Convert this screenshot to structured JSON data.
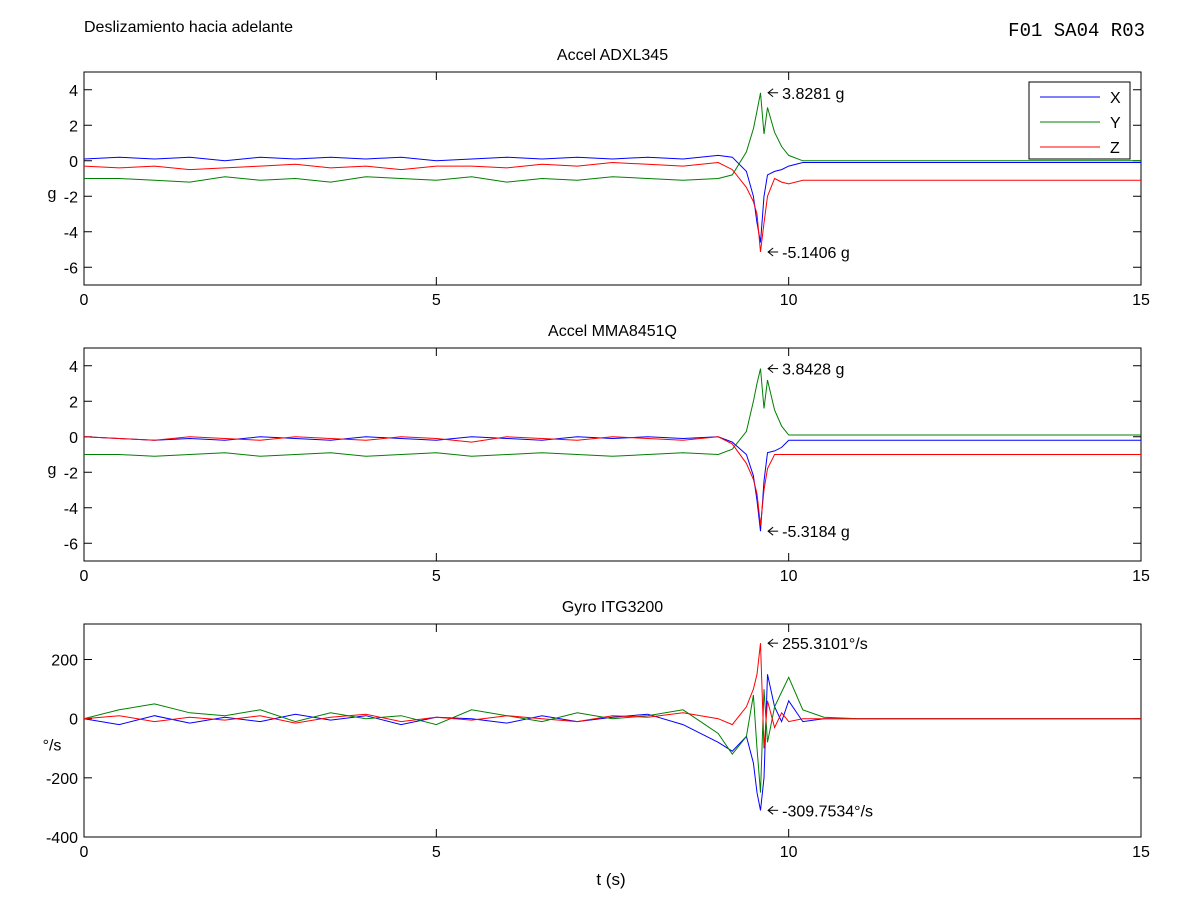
{
  "figure": {
    "title": "Deslizamiento hacia adelante",
    "code": "F01  SA04  R03",
    "xlabel": "t (s)"
  },
  "colors": {
    "X": "#0000ff",
    "Y": "#008000",
    "Z": "#ff0000",
    "axis": "#000000"
  },
  "chart_data": [
    {
      "type": "line",
      "title": "Accel ADXL345",
      "xlabel": "",
      "ylabel": "g",
      "xlim": [
        0,
        15
      ],
      "ylim": [
        -7,
        5
      ],
      "xticks": [
        0,
        5,
        10,
        15
      ],
      "yticks": [
        -6,
        -4,
        -2,
        0,
        2,
        4
      ],
      "grid": false,
      "legend": {
        "placement": "top-right",
        "entries": [
          "X",
          "Y",
          "Z"
        ]
      },
      "series": [
        {
          "name": "X",
          "x": [
            0,
            0.5,
            1,
            1.5,
            2,
            2.5,
            3,
            3.5,
            4,
            4.5,
            5,
            5.5,
            6,
            6.5,
            7,
            7.5,
            8,
            8.5,
            9,
            9.2,
            9.4,
            9.5,
            9.55,
            9.6,
            9.65,
            9.7,
            9.8,
            9.9,
            10,
            10.2,
            10.5,
            11,
            12,
            13,
            14,
            15
          ],
          "y": [
            0.1,
            0.2,
            0.1,
            0.2,
            0.0,
            0.2,
            0.1,
            0.2,
            0.1,
            0.2,
            0.0,
            0.1,
            0.2,
            0.1,
            0.2,
            0.1,
            0.2,
            0.1,
            0.3,
            0.2,
            -0.6,
            -2.0,
            -3.5,
            -4.6,
            -2.0,
            -0.8,
            -0.6,
            -0.5,
            -0.3,
            -0.1,
            -0.1,
            -0.1,
            -0.1,
            -0.1,
            -0.1,
            -0.1
          ]
        },
        {
          "name": "Y",
          "x": [
            0,
            0.5,
            1,
            1.5,
            2,
            2.5,
            3,
            3.5,
            4,
            4.5,
            5,
            5.5,
            6,
            6.5,
            7,
            7.5,
            8,
            8.5,
            9,
            9.2,
            9.4,
            9.5,
            9.55,
            9.6,
            9.65,
            9.7,
            9.8,
            9.9,
            10,
            10.2,
            10.5,
            11,
            12,
            13,
            14,
            15
          ],
          "y": [
            -1.0,
            -1.0,
            -1.1,
            -1.2,
            -0.9,
            -1.1,
            -1.0,
            -1.2,
            -0.9,
            -1.0,
            -1.1,
            -0.9,
            -1.2,
            -1.0,
            -1.1,
            -0.9,
            -1.0,
            -1.1,
            -1.0,
            -0.8,
            0.5,
            1.8,
            2.8,
            3.83,
            1.5,
            3.0,
            1.6,
            0.8,
            0.3,
            0.0,
            0.0,
            0.0,
            0.0,
            0.0,
            0.0,
            0.0
          ]
        },
        {
          "name": "Z",
          "x": [
            0,
            0.5,
            1,
            1.5,
            2,
            2.5,
            3,
            3.5,
            4,
            4.5,
            5,
            5.5,
            6,
            6.5,
            7,
            7.5,
            8,
            8.5,
            9,
            9.2,
            9.4,
            9.5,
            9.55,
            9.6,
            9.65,
            9.7,
            9.8,
            9.9,
            10,
            10.2,
            10.5,
            11,
            12,
            13,
            14,
            15
          ],
          "y": [
            -0.3,
            -0.4,
            -0.3,
            -0.5,
            -0.4,
            -0.3,
            -0.2,
            -0.4,
            -0.3,
            -0.5,
            -0.3,
            -0.3,
            -0.4,
            -0.2,
            -0.3,
            -0.1,
            -0.2,
            -0.3,
            -0.1,
            -0.5,
            -1.5,
            -2.3,
            -3.0,
            -5.14,
            -3.5,
            -2.0,
            -1.0,
            -1.2,
            -1.3,
            -1.1,
            -1.1,
            -1.1,
            -1.1,
            -1.1,
            -1.1,
            -1.1
          ]
        }
      ],
      "annotations": [
        {
          "text": "3.8281 g",
          "x": 9.68,
          "y": 3.83
        },
        {
          "text": "-5.1406 g",
          "x": 9.68,
          "y": -5.14
        }
      ]
    },
    {
      "type": "line",
      "title": "Accel MMA8451Q",
      "xlabel": "",
      "ylabel": "g",
      "xlim": [
        0,
        15
      ],
      "ylim": [
        -7,
        5
      ],
      "xticks": [
        0,
        5,
        10,
        15
      ],
      "yticks": [
        -6,
        -4,
        -2,
        0,
        2,
        4
      ],
      "grid": false,
      "series": [
        {
          "name": "X",
          "x": [
            0,
            0.5,
            1,
            1.5,
            2,
            2.5,
            3,
            3.5,
            4,
            4.5,
            5,
            5.5,
            6,
            6.5,
            7,
            7.5,
            8,
            8.5,
            9,
            9.2,
            9.4,
            9.5,
            9.55,
            9.6,
            9.65,
            9.7,
            9.8,
            9.9,
            10,
            10.2,
            10.5,
            11,
            12,
            13,
            14,
            15
          ],
          "y": [
            0.0,
            -0.1,
            -0.2,
            -0.1,
            -0.2,
            0.0,
            -0.1,
            -0.2,
            0.0,
            -0.1,
            -0.2,
            0.0,
            -0.1,
            -0.2,
            0.0,
            -0.1,
            0.0,
            -0.1,
            0.0,
            -0.3,
            -1.0,
            -2.2,
            -3.6,
            -5.32,
            -2.5,
            -0.9,
            -0.8,
            -0.6,
            -0.2,
            -0.2,
            -0.2,
            -0.2,
            -0.2,
            -0.2,
            -0.2,
            -0.2
          ]
        },
        {
          "name": "Y",
          "x": [
            0,
            0.5,
            1,
            1.5,
            2,
            2.5,
            3,
            3.5,
            4,
            4.5,
            5,
            5.5,
            6,
            6.5,
            7,
            7.5,
            8,
            8.5,
            9,
            9.2,
            9.4,
            9.5,
            9.55,
            9.6,
            9.65,
            9.7,
            9.8,
            9.9,
            10,
            10.2,
            10.5,
            11,
            12,
            13,
            14,
            15
          ],
          "y": [
            -1.0,
            -1.0,
            -1.1,
            -1.0,
            -0.9,
            -1.1,
            -1.0,
            -0.9,
            -1.1,
            -1.0,
            -0.9,
            -1.1,
            -1.0,
            -0.9,
            -1.0,
            -1.1,
            -1.0,
            -0.9,
            -1.0,
            -0.7,
            0.3,
            2.0,
            3.0,
            3.84,
            1.6,
            3.2,
            1.5,
            0.6,
            0.1,
            0.1,
            0.1,
            0.1,
            0.1,
            0.1,
            0.1,
            0.1
          ]
        },
        {
          "name": "Z",
          "x": [
            0,
            0.5,
            1,
            1.5,
            2,
            2.5,
            3,
            3.5,
            4,
            4.5,
            5,
            5.5,
            6,
            6.5,
            7,
            7.5,
            8,
            8.5,
            9,
            9.2,
            9.4,
            9.5,
            9.55,
            9.6,
            9.65,
            9.7,
            9.8,
            9.9,
            10,
            10.2,
            10.5,
            11,
            12,
            13,
            14,
            15
          ],
          "y": [
            0.0,
            -0.1,
            -0.2,
            0.0,
            -0.1,
            -0.2,
            0.0,
            -0.1,
            -0.2,
            0.0,
            -0.1,
            -0.3,
            0.0,
            -0.1,
            -0.2,
            0.0,
            -0.1,
            -0.2,
            0.0,
            -0.4,
            -1.5,
            -2.4,
            -3.2,
            -5.0,
            -3.0,
            -1.8,
            -1.0,
            -1.0,
            -1.0,
            -1.0,
            -1.0,
            -1.0,
            -1.0,
            -1.0,
            -1.0,
            -1.0
          ]
        }
      ],
      "annotations": [
        {
          "text": "3.8428 g",
          "x": 9.68,
          "y": 3.84
        },
        {
          "text": "-5.3184 g",
          "x": 9.68,
          "y": -5.32
        }
      ]
    },
    {
      "type": "line",
      "title": "Gyro ITG3200",
      "xlabel": "t (s)",
      "ylabel": "°/s",
      "xlim": [
        0,
        15
      ],
      "ylim": [
        -400,
        320
      ],
      "xticks": [
        0,
        5,
        10,
        15
      ],
      "yticks": [
        -400,
        -200,
        0,
        200
      ],
      "grid": false,
      "series": [
        {
          "name": "X",
          "x": [
            0,
            0.5,
            1,
            1.5,
            2,
            2.5,
            3,
            3.5,
            4,
            4.5,
            5,
            5.5,
            6,
            6.5,
            7,
            7.5,
            8,
            8.5,
            9,
            9.2,
            9.4,
            9.5,
            9.55,
            9.6,
            9.65,
            9.7,
            9.8,
            9.9,
            10,
            10.2,
            10.5,
            11,
            12,
            13,
            14,
            15
          ],
          "y": [
            0,
            -20,
            10,
            -15,
            5,
            -10,
            15,
            -5,
            10,
            -20,
            5,
            0,
            -15,
            10,
            -10,
            5,
            15,
            -20,
            -80,
            -110,
            -60,
            -150,
            -250,
            -310,
            -200,
            150,
            40,
            -10,
            60,
            -10,
            0,
            0,
            0,
            0,
            0,
            0
          ]
        },
        {
          "name": "Y",
          "x": [
            0,
            0.5,
            1,
            1.5,
            2,
            2.5,
            3,
            3.5,
            4,
            4.5,
            5,
            5.5,
            6,
            6.5,
            7,
            7.5,
            8,
            8.5,
            9,
            9.2,
            9.4,
            9.5,
            9.55,
            9.6,
            9.65,
            9.7,
            9.8,
            9.9,
            10,
            10.2,
            10.5,
            11,
            12,
            13,
            14,
            15
          ],
          "y": [
            0,
            30,
            50,
            20,
            10,
            30,
            -10,
            20,
            0,
            10,
            -20,
            30,
            10,
            -10,
            20,
            0,
            10,
            30,
            -50,
            -120,
            -60,
            80,
            -100,
            -250,
            100,
            -80,
            40,
            90,
            140,
            30,
            5,
            0,
            0,
            0,
            0,
            0
          ]
        },
        {
          "name": "Z",
          "x": [
            0,
            0.5,
            1,
            1.5,
            2,
            2.5,
            3,
            3.5,
            4,
            4.5,
            5,
            5.5,
            6,
            6.5,
            7,
            7.5,
            8,
            8.5,
            9,
            9.2,
            9.4,
            9.5,
            9.55,
            9.6,
            9.65,
            9.7,
            9.8,
            9.9,
            10,
            10.2,
            10.5,
            11,
            12,
            13,
            14,
            15
          ],
          "y": [
            0,
            10,
            -10,
            5,
            -5,
            10,
            -15,
            5,
            15,
            -10,
            5,
            -5,
            10,
            0,
            -10,
            10,
            5,
            20,
            0,
            -20,
            40,
            100,
            150,
            255,
            -100,
            60,
            -30,
            20,
            -10,
            0,
            0,
            0,
            0,
            0,
            0,
            0
          ]
        }
      ],
      "annotations": [
        {
          "text": "255.3101°/s",
          "x": 9.68,
          "y": 255.3
        },
        {
          "text": "-309.7534°/s",
          "x": 9.68,
          "y": -309.8
        }
      ]
    }
  ]
}
